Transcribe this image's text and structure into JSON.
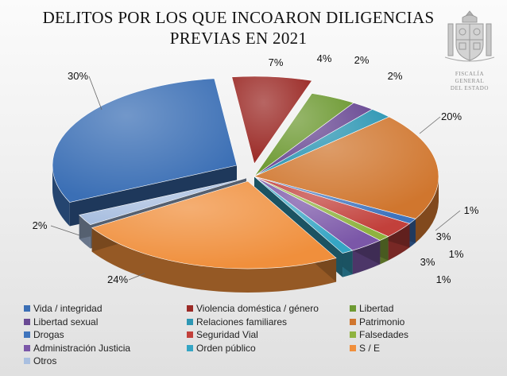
{
  "chart_data": {
    "type": "pie",
    "title": [
      "DELITOS POR LOS QUE INCOARON DILIGENCIAS",
      "PREVIAS EN 2021"
    ],
    "slices": [
      {
        "name": "Violencia doméstica / género",
        "value": 7,
        "label": "7%",
        "color": "#9b2a26"
      },
      {
        "name": "Libertad",
        "value": 4,
        "label": "4%",
        "color": "#6e9a33"
      },
      {
        "name": "Libertad sexual",
        "value": 2,
        "label": "2%",
        "color": "#6a4a94"
      },
      {
        "name": "Relaciones familiares",
        "value": 2,
        "label": "2%",
        "color": "#2e97b4"
      },
      {
        "name": "Patrimonio",
        "value": 20,
        "label": "20%",
        "color": "#d0762e"
      },
      {
        "name": "Drogas",
        "value": 1,
        "label": "1%",
        "color": "#3f74bd"
      },
      {
        "name": "Seguridad Vial",
        "value": 3,
        "label": "3%",
        "color": "#c2403b"
      },
      {
        "name": "Falsedades",
        "value": 1,
        "label": "1%",
        "color": "#8fb33f"
      },
      {
        "name": "Administración Justicia",
        "value": 3,
        "label": "3%",
        "color": "#7b57a8"
      },
      {
        "name": "Orden público",
        "value": 1,
        "label": "1%",
        "color": "#35a5c4"
      },
      {
        "name": "S / E",
        "value": 24,
        "label": "24%",
        "color": "#f08f3c"
      },
      {
        "name": "Otros",
        "value": 2,
        "label": "2%",
        "color": "#a9bfe0"
      },
      {
        "name": "Vida / integridad",
        "value": 30,
        "label": "30%",
        "color": "#3b6fb5"
      }
    ],
    "legend_position": "bottom",
    "legend_order": [
      "Vida / integridad",
      "Violencia doméstica / género",
      "Libertad",
      "Libertad sexual",
      "Relaciones familiares",
      "Patrimonio",
      "Drogas",
      "Seguridad Vial",
      "Falsedades",
      "Administración Justicia",
      "Orden público",
      "S / E",
      "Otros"
    ]
  },
  "logo": {
    "caption": [
      "FISCALÍA GENERAL",
      "DEL ESTADO"
    ]
  }
}
